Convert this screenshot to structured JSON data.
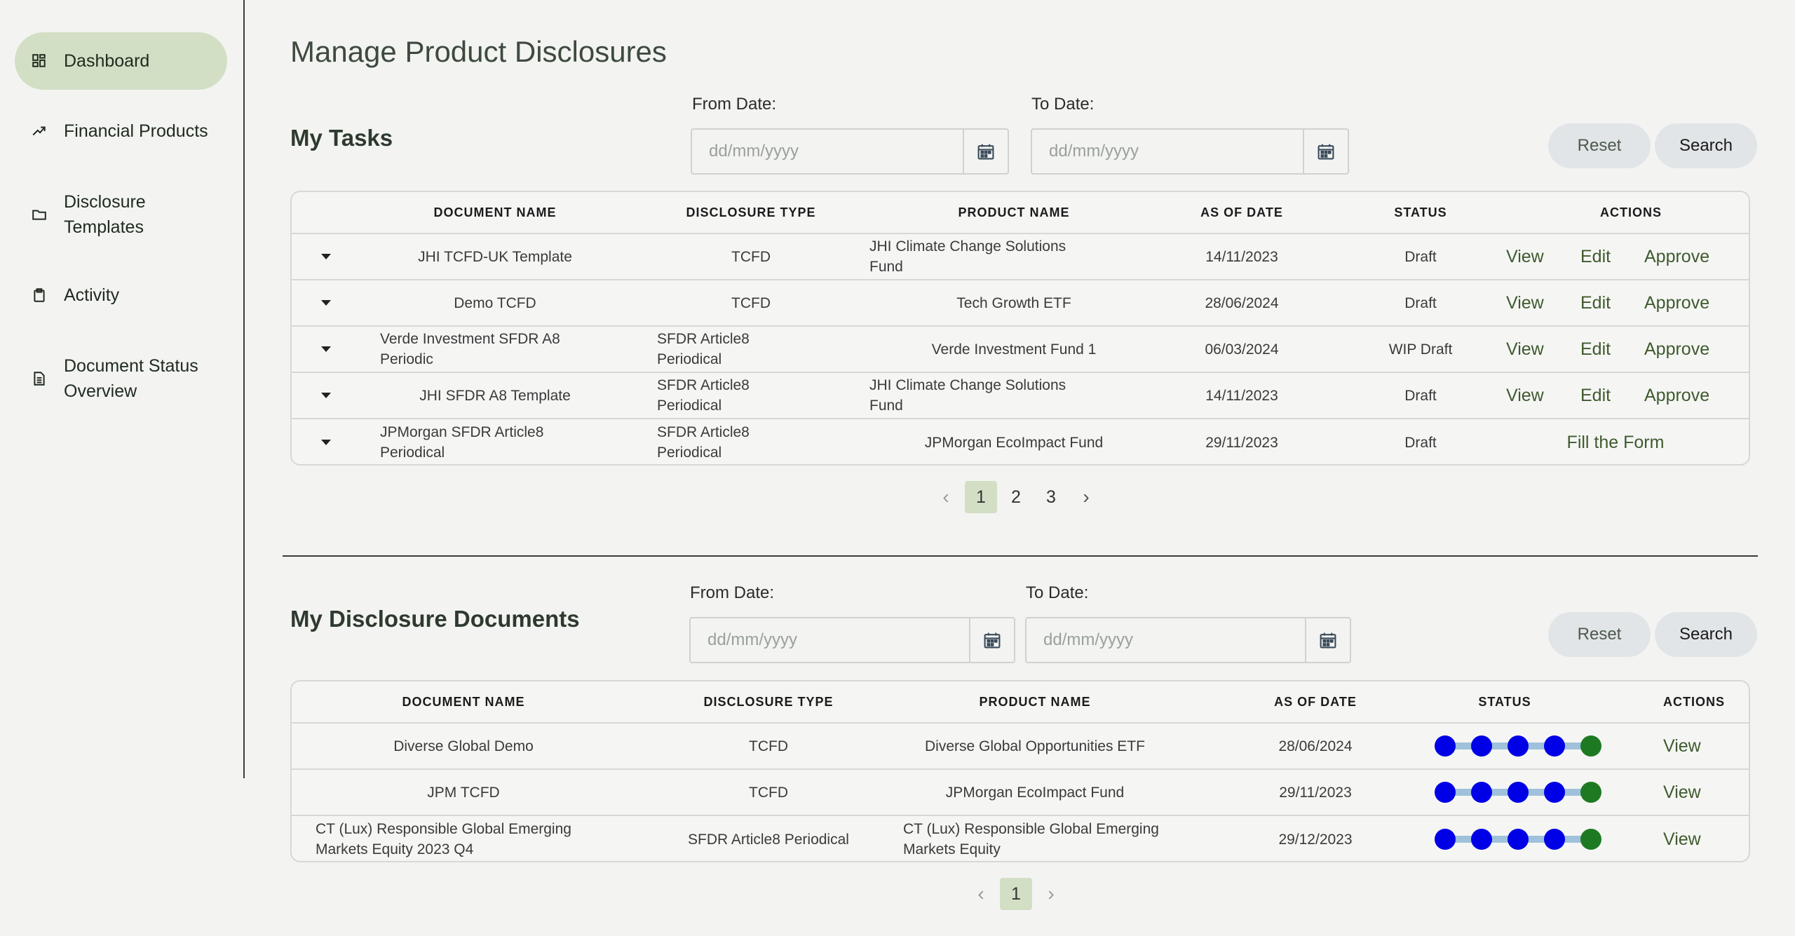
{
  "sidebar": {
    "items": [
      {
        "label": "Dashboard",
        "icon": "dashboard-icon",
        "active": true
      },
      {
        "label": "Financial Products",
        "icon": "trending-up-icon"
      },
      {
        "label": "Disclosure Templates",
        "icon": "folder-icon"
      },
      {
        "label": "Activity",
        "icon": "clipboard-icon"
      },
      {
        "label": "Document Status Overview",
        "icon": "document-icon"
      }
    ]
  },
  "page": {
    "title": "Manage Product Disclosures"
  },
  "tasks": {
    "title": "My Tasks",
    "from_label": "From Date:",
    "to_label": "To Date:",
    "date_placeholder": "dd/mm/yyyy",
    "reset_label": "Reset",
    "search_label": "Search",
    "columns": [
      "DOCUMENT NAME",
      "DISCLOSURE TYPE",
      "PRODUCT NAME",
      "AS OF DATE",
      "STATUS",
      "ACTIONS"
    ],
    "rows": [
      {
        "doc": "JHI TCFD-UK Template",
        "type": "TCFD",
        "product": "JHI Climate Change Solutions Fund",
        "date": "14/11/2023",
        "status": "Draft",
        "actions": [
          "View",
          "Edit",
          "Approve"
        ]
      },
      {
        "doc": "Demo TCFD",
        "type": "TCFD",
        "product": "Tech Growth ETF",
        "date": "28/06/2024",
        "status": "Draft",
        "actions": [
          "View",
          "Edit",
          "Approve"
        ]
      },
      {
        "doc": "Verde Investment SFDR A8 Periodic",
        "type": "SFDR Article8 Periodical",
        "product": "Verde Investment Fund 1",
        "date": "06/03/2024",
        "status": "WIP Draft",
        "actions": [
          "View",
          "Edit",
          "Approve"
        ]
      },
      {
        "doc": "JHI SFDR A8 Template",
        "type": "SFDR Article8 Periodical",
        "product": "JHI Climate Change Solutions Fund",
        "date": "14/11/2023",
        "status": "Draft",
        "actions": [
          "View",
          "Edit",
          "Approve"
        ]
      },
      {
        "doc": "JPMorgan SFDR Article8 Periodical",
        "type": "SFDR Article8 Periodical",
        "product": "JPMorgan EcoImpact Fund",
        "date": "29/11/2023",
        "status": "Draft",
        "actions": [
          "Fill the Form"
        ]
      }
    ],
    "pagination": {
      "pages": [
        "1",
        "2",
        "3"
      ],
      "current": "1",
      "prev": "‹",
      "next": "›"
    }
  },
  "docs": {
    "title": "My Disclosure Documents",
    "from_label": "From Date:",
    "to_label": "To Date:",
    "date_placeholder": "dd/mm/yyyy",
    "reset_label": "Reset",
    "search_label": "Search",
    "columns": [
      "DOCUMENT NAME",
      "DISCLOSURE TYPE",
      "PRODUCT NAME",
      "AS OF DATE",
      "STATUS",
      "ACTIONS"
    ],
    "rows": [
      {
        "doc": "Diverse Global Demo",
        "type": "TCFD",
        "product": "Diverse Global Opportunities ETF",
        "date": "28/06/2024",
        "action": "View"
      },
      {
        "doc": "JPM TCFD",
        "type": "TCFD",
        "product": "JPMorgan EcoImpact Fund",
        "date": "29/11/2023",
        "action": "View"
      },
      {
        "doc": "CT (Lux) Responsible Global Emerging Markets Equity 2023 Q4",
        "type": "SFDR Article8 Periodical",
        "product": "CT (Lux) Responsible Global Emerging Markets Equity",
        "date": "29/12/2023",
        "action": "View"
      }
    ],
    "status_colors": {
      "step": "#0000e6",
      "final": "#1e7a22",
      "track": "#9fc1dc"
    },
    "pagination": {
      "pages": [
        "1"
      ],
      "current": "1",
      "prev": "‹",
      "next": "›"
    }
  }
}
